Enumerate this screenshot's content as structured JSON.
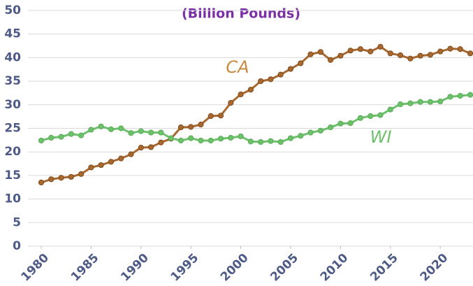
{
  "chart_data": {
    "type": "line",
    "subtitle": "(Billion Pounds)",
    "x": [
      1980,
      1981,
      1982,
      1983,
      1984,
      1985,
      1986,
      1987,
      1988,
      1989,
      1990,
      1991,
      1992,
      1993,
      1994,
      1995,
      1996,
      1997,
      1998,
      1999,
      2000,
      2001,
      2002,
      2003,
      2004,
      2005,
      2006,
      2007,
      2008,
      2009,
      2010,
      2011,
      2012,
      2013,
      2014,
      2015,
      2016,
      2017,
      2018,
      2019,
      2020,
      2021,
      2022,
      2023
    ],
    "series": [
      {
        "name": "CA",
        "color": "#a8682e",
        "values": [
          13.5,
          14.2,
          14.5,
          14.7,
          15.3,
          16.7,
          17.2,
          17.9,
          18.6,
          19.5,
          20.9,
          21.0,
          22.0,
          22.8,
          25.2,
          25.3,
          25.8,
          27.6,
          27.7,
          30.4,
          32.2,
          33.2,
          35.0,
          35.4,
          36.4,
          37.6,
          38.8,
          40.7,
          41.2,
          39.5,
          40.4,
          41.5,
          41.8,
          41.3,
          42.3,
          40.9,
          40.5,
          39.8,
          40.4,
          40.6,
          41.3,
          41.9,
          41.8,
          40.9
        ]
      },
      {
        "name": "WI",
        "color": "#6cc26a",
        "values": [
          22.4,
          23.0,
          23.2,
          23.8,
          23.5,
          24.7,
          25.4,
          24.8,
          25.0,
          24.0,
          24.4,
          24.1,
          24.1,
          22.9,
          22.4,
          22.9,
          22.4,
          22.4,
          22.8,
          23.0,
          23.3,
          22.2,
          22.1,
          22.3,
          22.1,
          22.9,
          23.4,
          24.1,
          24.5,
          25.2,
          26.0,
          26.1,
          27.2,
          27.6,
          27.8,
          29.0,
          30.1,
          30.3,
          30.6,
          30.6,
          30.7,
          31.7,
          31.9,
          32.1
        ]
      }
    ],
    "xlim": [
      1980,
      2023
    ],
    "xticks": [
      1980,
      1985,
      1990,
      1995,
      2000,
      2005,
      2010,
      2015,
      2020
    ],
    "ylim": [
      0,
      50
    ],
    "yticks": [
      0,
      5,
      10,
      15,
      20,
      25,
      30,
      35,
      40,
      45,
      50
    ],
    "grid": true
  }
}
